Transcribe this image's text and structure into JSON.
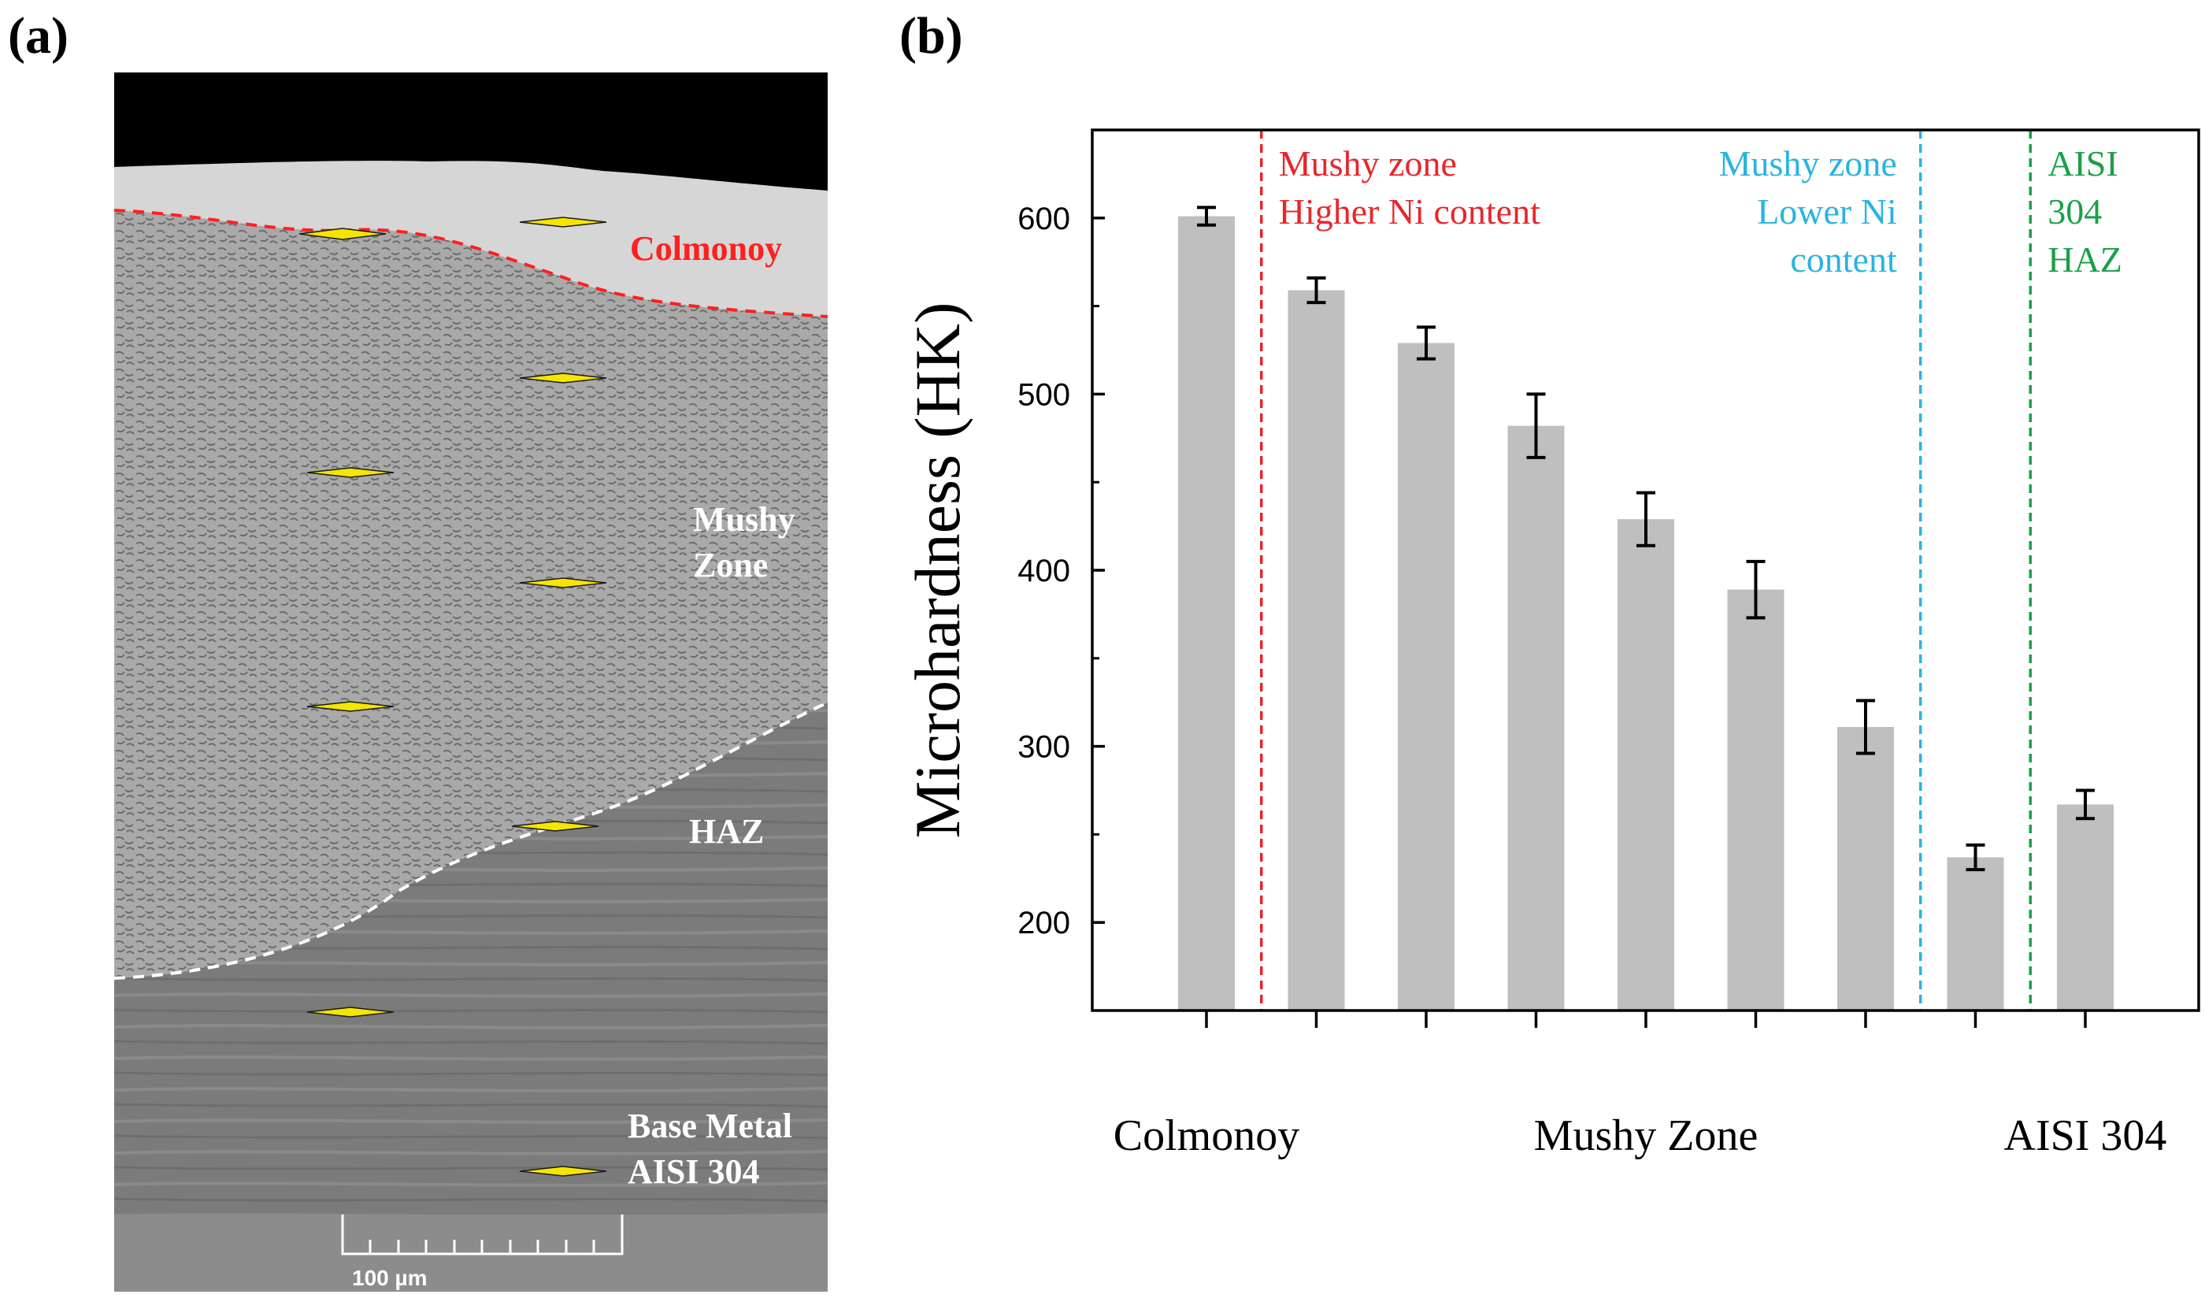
{
  "panels": {
    "a_label": "(a)",
    "b_label": "(b)"
  },
  "micrograph": {
    "labels": {
      "colmonoy": "Colmonoy",
      "mushy_line1": "Mushy",
      "mushy_line2": "Zone",
      "haz": "HAZ",
      "base_line1": "Base Metal",
      "base_line2": "AISI 304"
    },
    "scale_bar_label": "100 µm",
    "colors": {
      "colmonoy_boundary": "#ff2020",
      "haz_boundary": "#ffffff",
      "indent": "#f5e500"
    }
  },
  "chart_data": {
    "type": "bar",
    "ylabel": "Microhardness (HK)",
    "xlabel": "",
    "ylim": [
      150,
      650
    ],
    "yticks": [
      200,
      300,
      400,
      500,
      600
    ],
    "values": [
      601,
      559,
      529,
      482,
      429,
      389,
      311,
      237,
      267
    ],
    "errors": [
      5,
      7,
      9,
      18,
      15,
      16,
      15,
      7,
      8
    ],
    "group_labels": [
      {
        "text": "Colmonoy",
        "at_bar": 0
      },
      {
        "text": "Mushy Zone",
        "at_bar": 4
      },
      {
        "text": "AISI 304",
        "at_bar": 8
      }
    ],
    "boundaries": [
      {
        "after_bar": 0,
        "color": "#e8262b",
        "lines": [
          "Mushy zone",
          "Higher Ni content"
        ],
        "align": "left"
      },
      {
        "after_bar": 6,
        "color": "#28b4e0",
        "lines": [
          "Mushy zone",
          "Lower Ni",
          "content"
        ],
        "align": "right"
      },
      {
        "after_bar": 7,
        "color": "#1aa048",
        "lines": [
          "AISI",
          "304",
          "HAZ"
        ],
        "align": "left"
      }
    ],
    "bar_color": "#bfbfbf",
    "grid": false
  }
}
